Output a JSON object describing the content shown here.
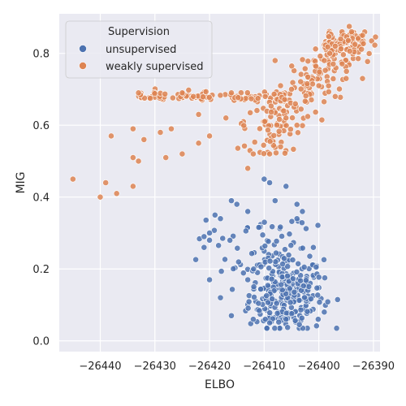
{
  "chart_data": {
    "type": "scatter",
    "xlabel": "ELBO",
    "ylabel": "MIG",
    "xlim": [
      -26447.5,
      -26388.8
    ],
    "ylim": [
      -0.03,
      0.91
    ],
    "xticks": [
      -26440,
      -26430,
      -26420,
      -26410,
      -26400,
      -26390
    ],
    "xtick_labels": [
      "−26440",
      "−26430",
      "−26420",
      "−26410",
      "−26400",
      "−26390"
    ],
    "yticks": [
      0.0,
      0.2,
      0.4,
      0.6,
      0.8
    ],
    "ytick_labels": [
      "0.0",
      "0.2",
      "0.4",
      "0.6",
      "0.8"
    ],
    "grid": true,
    "legend": {
      "title": "Supervision",
      "placement": "top-left"
    },
    "series": [
      {
        "name": "unsupervised",
        "color": "#4c72b0",
        "points_sample": [
          [
            -26415,
            0.38
          ],
          [
            -26416,
            0.39
          ],
          [
            -26413,
            0.36
          ],
          [
            -26419,
            0.35
          ],
          [
            -26418,
            0.34
          ],
          [
            -26410,
            0.45
          ],
          [
            -26409,
            0.44
          ],
          [
            -26406,
            0.43
          ],
          [
            -26408,
            0.39
          ],
          [
            -26404,
            0.38
          ],
          [
            -26403,
            0.36
          ],
          [
            -26404,
            0.34
          ],
          [
            -26401,
            0.26
          ],
          [
            -26421,
            0.26
          ],
          [
            -26420,
            0.28
          ],
          [
            -26421,
            0.29
          ],
          [
            -26420,
            0.3
          ],
          [
            -26418,
            0.12
          ],
          [
            -26420,
            0.17
          ],
          [
            -26413,
            0.17
          ],
          [
            -26399,
            0.08
          ],
          [
            -26416,
            0.07
          ],
          [
            -26412,
            0.06
          ],
          [
            -26409,
            0.05
          ],
          [
            -26406,
            0.06
          ]
        ]
      },
      {
        "name": "weakly supervised",
        "color": "#dd8452",
        "points_sample": [
          [
            -26445,
            0.45
          ],
          [
            -26439,
            0.44
          ],
          [
            -26440,
            0.4
          ],
          [
            -26437,
            0.41
          ],
          [
            -26434,
            0.43
          ],
          [
            -26434,
            0.59
          ],
          [
            -26432,
            0.56
          ],
          [
            -26429,
            0.58
          ],
          [
            -26427,
            0.59
          ],
          [
            -26438,
            0.57
          ],
          [
            -26434,
            0.51
          ],
          [
            -26433,
            0.5
          ],
          [
            -26428,
            0.51
          ],
          [
            -26425,
            0.52
          ],
          [
            -26422,
            0.55
          ],
          [
            -26422,
            0.63
          ],
          [
            -26417,
            0.62
          ],
          [
            -26420,
            0.57
          ],
          [
            -26412,
            0.52
          ],
          [
            -26413,
            0.48
          ],
          [
            -26433,
            0.69
          ],
          [
            -26425,
            0.69
          ],
          [
            -26416,
            0.69
          ],
          [
            -26405,
            0.7
          ],
          [
            -26400,
            0.71
          ],
          [
            -26397,
            0.68
          ],
          [
            -26395,
            0.73
          ],
          [
            -26392,
            0.73
          ],
          [
            -26398,
            0.8
          ],
          [
            -26397,
            0.82
          ],
          [
            -26394,
            0.86
          ],
          [
            -26392,
            0.85
          ],
          [
            -26396,
            0.84
          ],
          [
            -26399,
            0.78
          ],
          [
            -26408,
            0.78
          ],
          [
            -26407,
            0.71
          ],
          [
            -26404,
            0.6
          ],
          [
            -26406,
            0.62
          ],
          [
            -26407,
            0.54
          ],
          [
            -26409,
            0.52
          ]
        ]
      }
    ]
  }
}
